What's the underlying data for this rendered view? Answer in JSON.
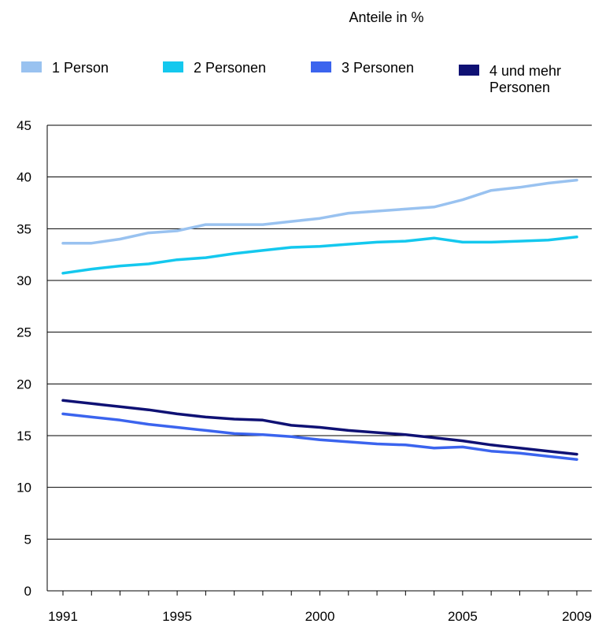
{
  "chart_data": {
    "type": "line",
    "title": "Anteile in %",
    "xlabel": "",
    "ylabel": "",
    "ylim": [
      0,
      45
    ],
    "yticks": [
      0,
      5,
      10,
      15,
      20,
      25,
      30,
      35,
      40,
      45
    ],
    "xlim": [
      1991,
      2009
    ],
    "x": [
      1991,
      1992,
      1993,
      1994,
      1995,
      1996,
      1997,
      1998,
      1999,
      2000,
      2001,
      2002,
      2003,
      2004,
      2005,
      2006,
      2007,
      2008,
      2009
    ],
    "xtick_labels": [
      "1991",
      "1995",
      "2000",
      "2005",
      "2009"
    ],
    "grid": "horizontal",
    "legend_position": "top",
    "series": [
      {
        "name": "1 Person",
        "color": "#99c2f0",
        "values": [
          33.6,
          33.6,
          34.0,
          34.6,
          34.8,
          35.4,
          35.4,
          35.4,
          35.7,
          36.0,
          36.5,
          36.7,
          36.9,
          37.1,
          37.8,
          38.7,
          39.0,
          39.4,
          39.7
        ]
      },
      {
        "name": "2 Personen",
        "color": "#14c8ee",
        "values": [
          30.7,
          31.1,
          31.4,
          31.6,
          32.0,
          32.2,
          32.6,
          32.9,
          33.2,
          33.3,
          33.5,
          33.7,
          33.8,
          34.1,
          33.7,
          33.7,
          33.8,
          33.9,
          34.2
        ]
      },
      {
        "name": "3 Personen",
        "color": "#3b64ee",
        "values": [
          17.1,
          16.8,
          16.5,
          16.1,
          15.8,
          15.5,
          15.2,
          15.1,
          14.9,
          14.6,
          14.4,
          14.2,
          14.1,
          13.8,
          13.9,
          13.5,
          13.3,
          13.0,
          12.7
        ]
      },
      {
        "name": "4 und mehr Personen",
        "label_lines": [
          "4 und mehr",
          "Personen"
        ],
        "color": "#0f1174",
        "values": [
          18.4,
          18.1,
          17.8,
          17.5,
          17.1,
          16.8,
          16.6,
          16.5,
          16.0,
          15.8,
          15.5,
          15.3,
          15.1,
          14.8,
          14.5,
          14.1,
          13.8,
          13.5,
          13.2
        ]
      }
    ]
  }
}
